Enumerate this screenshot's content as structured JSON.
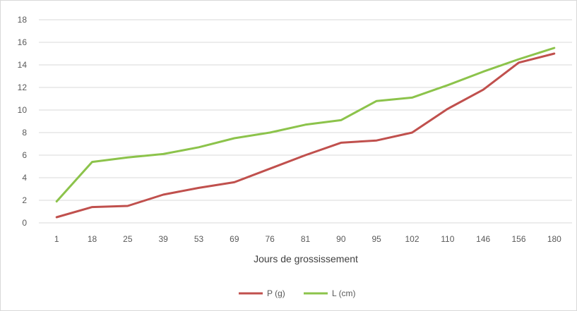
{
  "chart_data": {
    "type": "line",
    "title": "",
    "xlabel": "Jours de grossissement",
    "ylabel": "",
    "categories": [
      "1",
      "18",
      "25",
      "39",
      "53",
      "69",
      "76",
      "81",
      "90",
      "95",
      "102",
      "110",
      "146",
      "156",
      "180"
    ],
    "yticks": [
      "0",
      "2",
      "4",
      "6",
      "8",
      "10",
      "12",
      "14",
      "16",
      "18"
    ],
    "ylim": [
      0,
      18
    ],
    "grid": true,
    "legend_position": "bottom",
    "series": [
      {
        "name": "P (g)",
        "color": "#c0504d",
        "values": [
          0.5,
          1.4,
          1.5,
          2.5,
          3.1,
          3.6,
          4.8,
          6.0,
          7.1,
          7.3,
          8.0,
          10.1,
          11.8,
          14.2,
          15.0
        ]
      },
      {
        "name": "L (cm)",
        "color": "#8cc34b",
        "values": [
          1.9,
          5.4,
          5.8,
          6.1,
          6.7,
          7.5,
          8.0,
          8.7,
          9.1,
          10.8,
          11.1,
          12.2,
          13.4,
          14.5,
          15.5
        ]
      }
    ]
  }
}
